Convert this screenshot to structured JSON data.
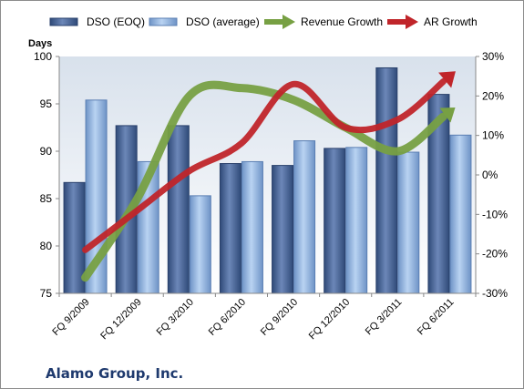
{
  "company_name": "Alamo Group, Inc.",
  "colors": {
    "dso_eoq": "#4a6594",
    "dso_avg": "#8fb4e3",
    "revenue_growth": "#77a043",
    "ar_growth": "#c0252a"
  },
  "chart_data": {
    "type": "bar",
    "title": "",
    "ylabel": "Days",
    "ylim": [
      75,
      100
    ],
    "y_ticks": [
      75,
      80,
      85,
      90,
      95,
      100
    ],
    "y2lim": [
      -30,
      30
    ],
    "y2_ticks": [
      "-30%",
      "-20%",
      "-10%",
      "0%",
      "10%",
      "20%",
      "30%"
    ],
    "categories": [
      "FQ 9/2009",
      "FQ 12/2009",
      "FQ 3/2010",
      "FQ 6/2010",
      "FQ 9/2010",
      "FQ 12/2010",
      "FQ 3/2011",
      "FQ 6/2011"
    ],
    "series": [
      {
        "name": "DSO (EOQ)",
        "type": "bar",
        "axis": "left",
        "values": [
          86.7,
          92.7,
          92.7,
          88.7,
          88.5,
          90.3,
          98.8,
          96.0
        ]
      },
      {
        "name": "DSO (average)",
        "type": "bar",
        "axis": "left",
        "values": [
          95.4,
          88.9,
          85.3,
          88.9,
          91.1,
          90.4,
          89.9,
          91.7
        ]
      },
      {
        "name": "Revenue Growth",
        "type": "line",
        "axis": "right",
        "values": [
          -26,
          -6,
          20,
          22,
          19,
          12,
          6,
          16
        ]
      },
      {
        "name": "AR Growth",
        "type": "line",
        "axis": "right",
        "values": [
          -19,
          -9,
          1,
          8,
          23,
          12,
          14,
          25
        ]
      }
    ],
    "legend_position": "top",
    "grid": false
  }
}
